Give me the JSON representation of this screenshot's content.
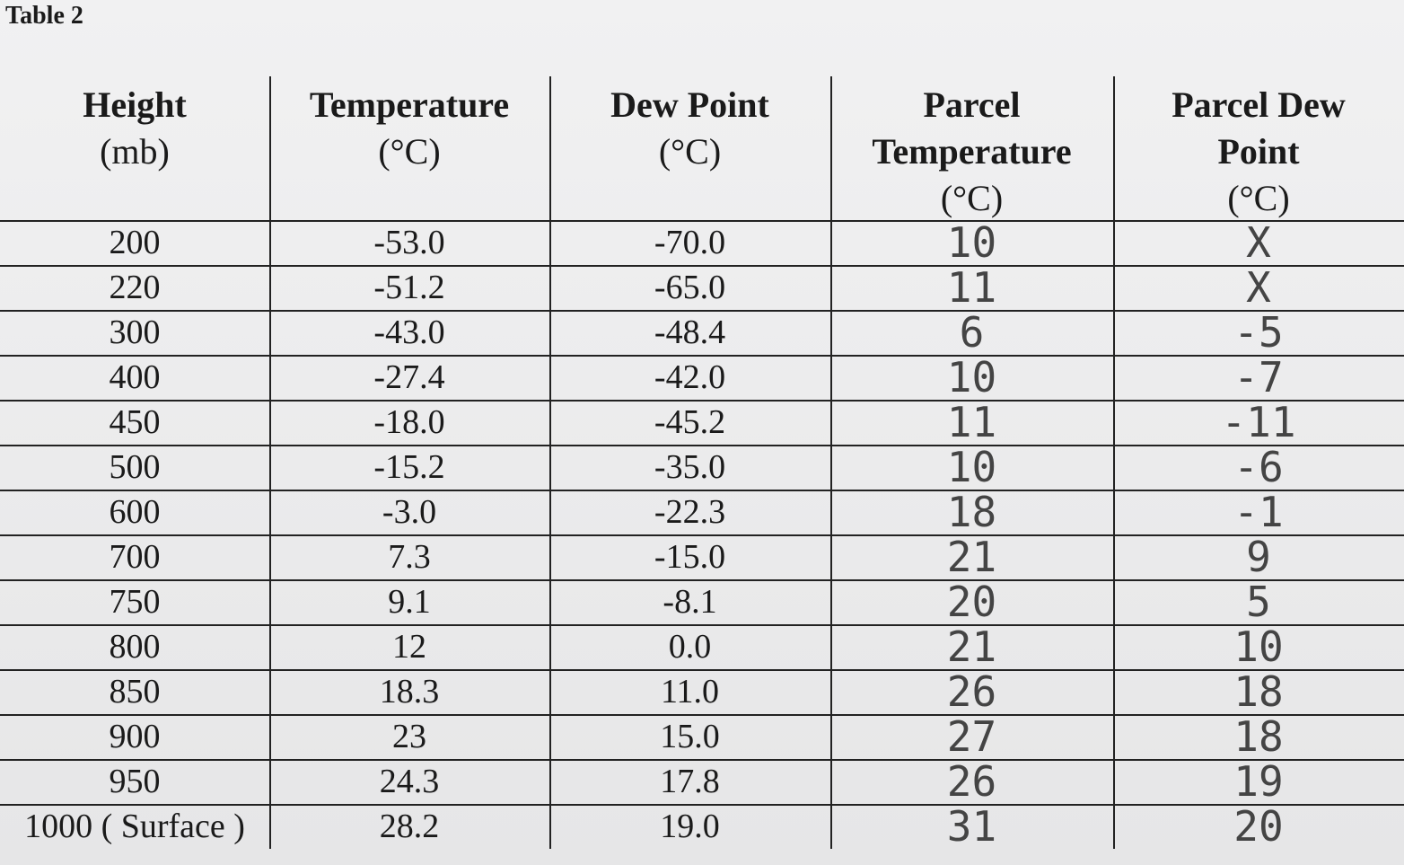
{
  "title": "Table 2",
  "table": {
    "headers": [
      [
        "Height",
        "(mb)"
      ],
      [
        "Temperature",
        "(°C)"
      ],
      [
        "Dew Point",
        "(°C)"
      ],
      [
        "Parcel",
        "Temperature",
        "(°C)"
      ],
      [
        "Parcel Dew",
        "Point",
        "(°C)"
      ]
    ],
    "rows": [
      [
        "200",
        "-53.0",
        "-70.0",
        "10",
        "X"
      ],
      [
        "220",
        "-51.2",
        "-65.0",
        "11",
        "X"
      ],
      [
        "300",
        "-43.0",
        "-48.4",
        "6",
        "-5"
      ],
      [
        "400",
        "-27.4",
        "-42.0",
        "10",
        "-7"
      ],
      [
        "450",
        "-18.0",
        "-45.2",
        "11",
        "-11"
      ],
      [
        "500",
        "-15.2",
        "-35.0",
        "10",
        "-6"
      ],
      [
        "600",
        "-3.0",
        "-22.3",
        "18",
        "-1"
      ],
      [
        "700",
        "7.3",
        "-15.0",
        "21",
        "9"
      ],
      [
        "750",
        "9.1",
        "-8.1",
        "20",
        "5"
      ],
      [
        "800",
        "12",
        "0.0",
        "21",
        "10"
      ],
      [
        "850",
        "18.3",
        "11.0",
        "26",
        "18"
      ],
      [
        "900",
        "23",
        "15.0",
        "27",
        "18"
      ],
      [
        "950",
        "24.3",
        "17.8",
        "26",
        "19"
      ],
      [
        "1000 ( Surface )",
        "28.2",
        "19.0",
        "31",
        "20"
      ]
    ]
  }
}
